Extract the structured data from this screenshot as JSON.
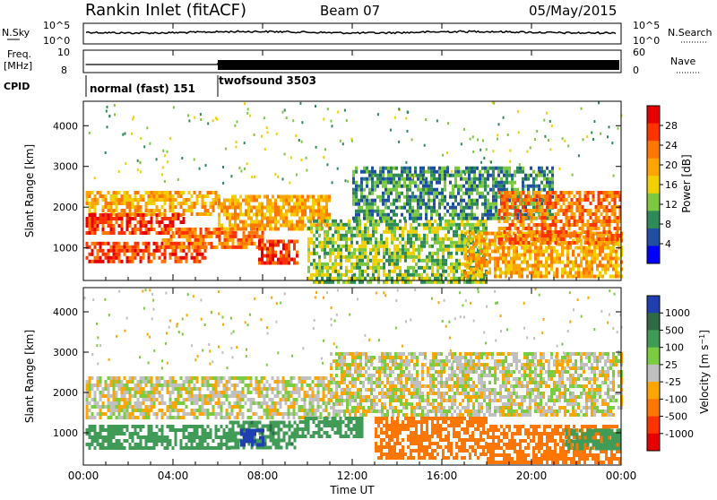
{
  "header": {
    "station": "Rankin Inlet (fitACF)",
    "beam": "Beam 07",
    "date": "05/May/2015"
  },
  "sky_panel": {
    "left_label": "N.Sky",
    "left_ticks": [
      "10^5",
      "10^0"
    ],
    "right_label": "N.Search",
    "right_ticks": [
      "10^5",
      "10^0"
    ]
  },
  "freq_panel": {
    "left_label_line1": "Freq.",
    "left_label_line2": "[MHz]",
    "left_ticks": [
      "10",
      "8"
    ],
    "right_label": "Nave",
    "right_ticks": [
      "60",
      "0"
    ]
  },
  "cpid": {
    "label": "CPID",
    "modes": [
      {
        "name": "normal (fast) 151",
        "start_hour": 0
      },
      {
        "name": "twofsound 3503",
        "start_hour": 6
      }
    ]
  },
  "chart_data": [
    {
      "type": "heatmap",
      "title": "",
      "xlabel": "Time UT",
      "ylabel": "Slant Range [km]",
      "xlim_hours": [
        0,
        24
      ],
      "ylim": [
        200,
        4600
      ],
      "y_ticks": [
        1000,
        2000,
        3000,
        4000
      ],
      "x_ticks": [
        "00:00",
        "04:00",
        "08:00",
        "12:00",
        "16:00",
        "20:00",
        "00:00"
      ],
      "colorbar": {
        "label": "Power [dB]",
        "ticks": [
          "28",
          "24",
          "20",
          "16",
          "12",
          "8",
          "4"
        ],
        "colors": [
          "#e60000",
          "#ff3300",
          "#ff7700",
          "#ffa500",
          "#f0d000",
          "#7cc840",
          "#2e8b57",
          "#1f4fa0",
          "#0000ff"
        ]
      },
      "echo_regions": [
        {
          "t0": 0.1,
          "t1": 6.0,
          "r0": 1850,
          "r1": 2400,
          "level": 20
        },
        {
          "t0": 0.1,
          "t1": 4.5,
          "r0": 1350,
          "r1": 1850,
          "level": 26
        },
        {
          "t0": 0.1,
          "t1": 5.5,
          "r0": 700,
          "r1": 1150,
          "level": 26
        },
        {
          "t0": 3.5,
          "t1": 8.0,
          "r0": 1000,
          "r1": 1500,
          "level": 22
        },
        {
          "t0": 6.0,
          "t1": 11.0,
          "r0": 1500,
          "r1": 2300,
          "level": 18
        },
        {
          "t0": 7.8,
          "t1": 9.6,
          "r0": 600,
          "r1": 1200,
          "level": 28
        },
        {
          "t0": 10.0,
          "t1": 18.0,
          "r0": 200,
          "r1": 1700,
          "level": 12
        },
        {
          "t0": 12.0,
          "t1": 21.0,
          "r0": 1700,
          "r1": 3000,
          "level": 8
        },
        {
          "t0": 17.0,
          "t1": 24.0,
          "r0": 300,
          "r1": 1400,
          "level": 18
        },
        {
          "t0": 18.5,
          "t1": 24.0,
          "r0": 1100,
          "r1": 2400,
          "level": 22
        }
      ]
    },
    {
      "type": "heatmap",
      "title": "",
      "xlabel": "Time UT",
      "ylabel": "Slant Range [km]",
      "xlim_hours": [
        0,
        24
      ],
      "ylim": [
        200,
        4600
      ],
      "y_ticks": [
        1000,
        2000,
        3000,
        4000
      ],
      "x_ticks": [
        "00:00",
        "04:00",
        "08:00",
        "12:00",
        "16:00",
        "20:00",
        "00:00"
      ],
      "colorbar": {
        "label": "Velocity [m s^-1]",
        "ticks": [
          "1000",
          "500",
          "100",
          "25",
          "-25",
          "-100",
          "-500",
          "-1000"
        ],
        "colors": [
          "#1f3fb0",
          "#2e6b45",
          "#3f9b55",
          "#7acc40",
          "#c0c0c0",
          "#ffa500",
          "#ff7700",
          "#ff3300",
          "#e60000"
        ]
      },
      "echo_regions": [
        {
          "t0": 0.1,
          "t1": 11.0,
          "r0": 1400,
          "r1": 2400,
          "level": 0
        },
        {
          "t0": 0.1,
          "t1": 6.5,
          "r0": 600,
          "r1": 1200,
          "level": 200
        },
        {
          "t0": 6.5,
          "t1": 9.5,
          "r0": 600,
          "r1": 1300,
          "level": 250
        },
        {
          "t0": 7.0,
          "t1": 8.0,
          "r0": 700,
          "r1": 1100,
          "level": 800
        },
        {
          "t0": 9.5,
          "t1": 12.5,
          "r0": 900,
          "r1": 1400,
          "level": 200
        },
        {
          "t0": 11.0,
          "t1": 24.0,
          "r0": 1400,
          "r1": 3000,
          "level": 0
        },
        {
          "t0": 13.0,
          "t1": 18.0,
          "r0": 400,
          "r1": 1400,
          "level": -300
        },
        {
          "t0": 18.0,
          "t1": 24.0,
          "r0": 300,
          "r1": 1200,
          "level": -200
        },
        {
          "t0": 21.5,
          "t1": 24.0,
          "r0": 600,
          "r1": 1100,
          "level": 150
        }
      ]
    }
  ]
}
